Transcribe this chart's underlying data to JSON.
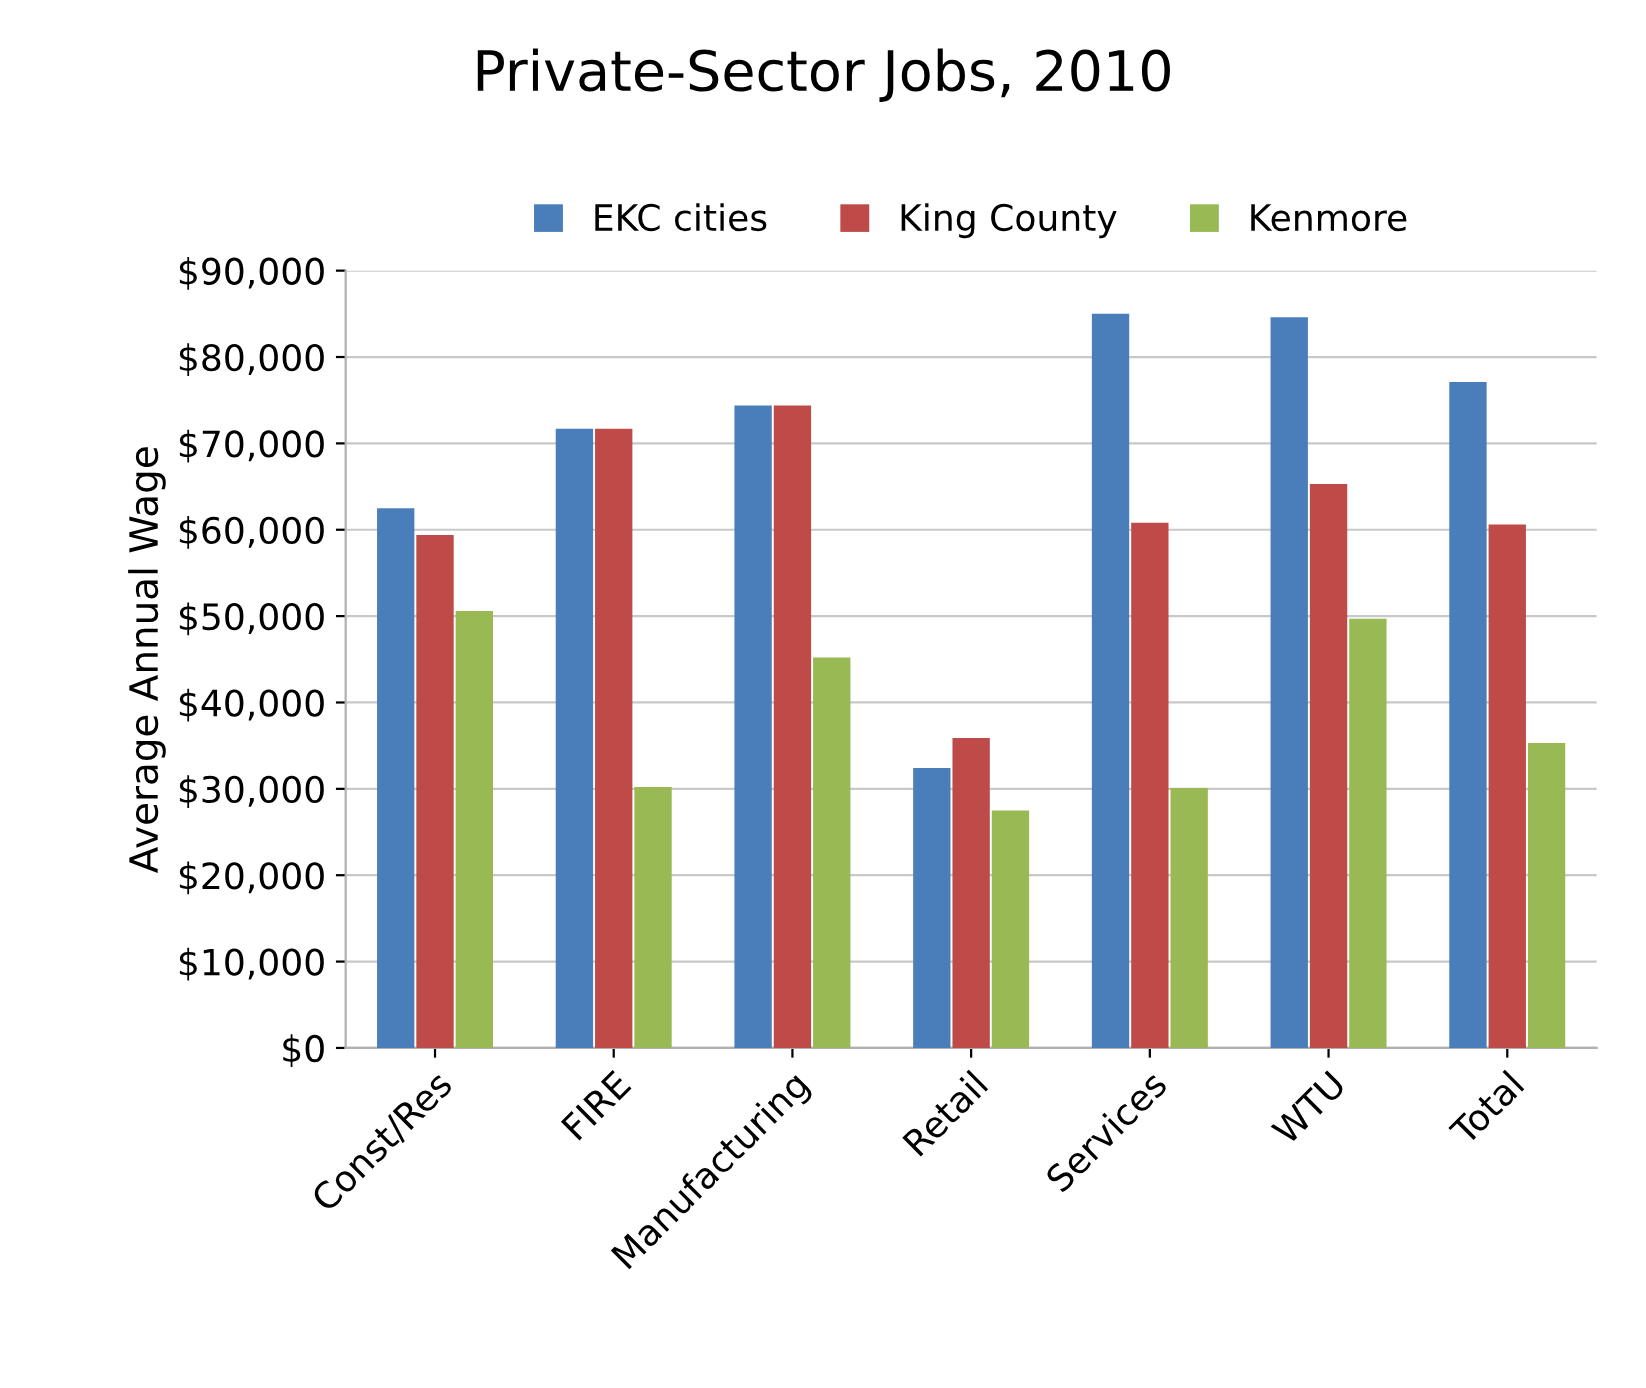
{
  "chart_data": {
    "type": "bar",
    "title": "Private-Sector Jobs, 2010",
    "ylabel": "Average Annual Wage",
    "categories": [
      "Const/Res",
      "FIRE",
      "Manufacturing",
      "Retail",
      "Services",
      "WTU",
      "Total"
    ],
    "series": [
      {
        "name": "EKC cities",
        "color": "#4a7ebb",
        "values": [
          62500,
          71700,
          74400,
          32400,
          85000,
          84600,
          77100
        ]
      },
      {
        "name": "King County",
        "color": "#be4b48",
        "values": [
          59400,
          71700,
          74400,
          35900,
          60800,
          65300,
          60600
        ]
      },
      {
        "name": "Kenmore",
        "color": "#98b954",
        "values": [
          50600,
          30200,
          45200,
          27500,
          30100,
          49700,
          35300
        ]
      }
    ],
    "ylim": [
      0,
      90000
    ],
    "yticks": [
      {
        "value": 0,
        "label": "$0"
      },
      {
        "value": 10000,
        "label": "$10,000"
      },
      {
        "value": 20000,
        "label": "$20,000"
      },
      {
        "value": 30000,
        "label": "$30,000"
      },
      {
        "value": 40000,
        "label": "$40,000"
      },
      {
        "value": 50000,
        "label": "$50,000"
      },
      {
        "value": 60000,
        "label": "$60,000"
      },
      {
        "value": 70000,
        "label": "$70,000"
      },
      {
        "value": 80000,
        "label": "$80,000"
      },
      {
        "value": 90000,
        "label": "$90,000"
      }
    ],
    "grid": "y",
    "legend": "top"
  }
}
